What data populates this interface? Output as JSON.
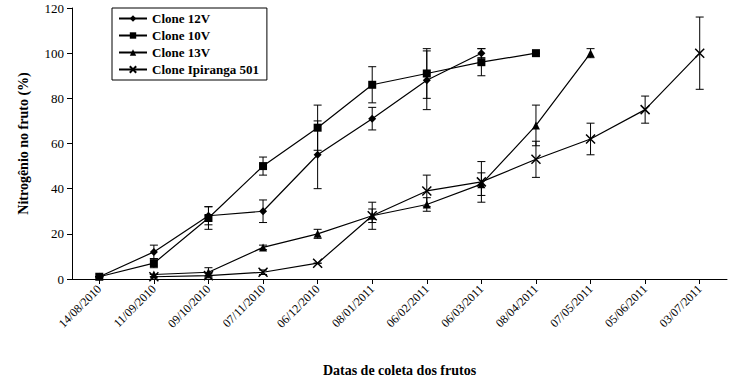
{
  "chart_data": {
    "type": "line",
    "x_label": "Datas de coleta dos frutos",
    "y_label": "Nitrogênio no fruto (%)",
    "categories": [
      "14/08/2010",
      "11/09/2010",
      "09/10/2010",
      "07/11/2010",
      "06/12/2010",
      "08/01/2011",
      "06/02/2011",
      "06/03/2011",
      "08/04/2011",
      "07/05/2011",
      "05/06/2011",
      "03/07/2011"
    ],
    "ylim": [
      0,
      120
    ],
    "yticks": [
      0,
      20,
      40,
      60,
      80,
      100,
      120
    ],
    "grid": false,
    "legend": "upper left",
    "series": [
      {
        "name": "Clone 12V",
        "color": "#000000",
        "marker": "diamond",
        "line_style": "solid",
        "values": [
          1,
          12,
          28,
          30,
          55,
          71,
          88,
          100,
          null,
          null,
          null,
          null
        ],
        "errors": [
          0,
          3,
          4,
          5,
          15,
          5,
          13,
          2,
          null,
          null,
          null,
          null
        ]
      },
      {
        "name": "Clone 10V",
        "color": "#000000",
        "marker": "square",
        "line_style": "solid",
        "values": [
          1,
          7,
          27,
          50,
          67,
          86,
          91,
          96,
          100,
          null,
          null,
          null
        ],
        "errors": [
          0,
          2,
          5,
          4,
          10,
          8,
          11,
          6,
          0,
          null,
          null,
          null
        ]
      },
      {
        "name": "Clone 13V",
        "color": "#000000",
        "marker": "triangle",
        "line_style": "solid",
        "values": [
          null,
          2,
          3,
          14,
          20,
          28,
          33,
          42,
          68,
          100,
          null,
          null
        ],
        "errors": [
          null,
          0,
          2,
          1,
          2,
          3,
          3,
          5,
          9,
          2,
          null,
          null
        ]
      },
      {
        "name": "Clone Ipiranga 501",
        "color": "#000000",
        "marker": "x",
        "line_style": "solid",
        "values": [
          null,
          1,
          1.5,
          3,
          7,
          28,
          39,
          43,
          53,
          62,
          75,
          100
        ],
        "errors": [
          null,
          0,
          1,
          1,
          0,
          6,
          7,
          9,
          8,
          7,
          6,
          16
        ]
      }
    ]
  }
}
